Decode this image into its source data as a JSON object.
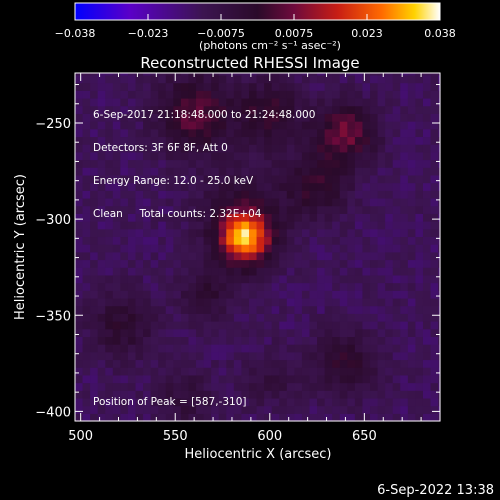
{
  "chart_data": {
    "type": "heatmap",
    "title": "Reconstructed RHESSI Image",
    "xlabel": "Heliocentric X (arcsec)",
    "ylabel": "Heliocentric Y (arcsec)",
    "xlim": [
      497,
      690
    ],
    "ylim": [
      -405,
      -224
    ],
    "x_ticks": [
      500,
      550,
      600,
      650
    ],
    "y_ticks": [
      -250,
      -300,
      -350,
      -400
    ],
    "colorbar": {
      "range": [
        -0.038,
        0.038
      ],
      "ticks": [
        "-0.038",
        "-0.023",
        "-0.0075",
        "0.0075",
        "0.023",
        "0.038"
      ],
      "unit_label": "(photons cm⁻² s⁻¹ asec⁻²)",
      "colormap": [
        "#0000ff",
        "#5a00c8",
        "#3c1450",
        "#2a0a2a",
        "#6e0a3c",
        "#c81e14",
        "#ff6a00",
        "#ffd200",
        "#ffffff"
      ]
    },
    "sources": [
      {
        "x": 587,
        "y": -310,
        "amplitude": 0.038,
        "sigma": 9
      },
      {
        "x": 585,
        "y": -298,
        "amplitude": 0.012,
        "sigma": 16
      },
      {
        "x": 560,
        "y": -245,
        "amplitude": 0.018,
        "sigma": 14
      },
      {
        "x": 600,
        "y": -245,
        "amplitude": 0.014,
        "sigma": 12
      },
      {
        "x": 640,
        "y": -255,
        "amplitude": 0.02,
        "sigma": 11
      },
      {
        "x": 625,
        "y": -282,
        "amplitude": 0.013,
        "sigma": 12
      },
      {
        "x": 522,
        "y": -355,
        "amplitude": 0.011,
        "sigma": 12
      },
      {
        "x": 567,
        "y": -338,
        "amplitude": 0.01,
        "sigma": 10
      },
      {
        "x": 640,
        "y": -375,
        "amplitude": 0.012,
        "sigma": 12
      },
      {
        "x": 555,
        "y": -393,
        "amplitude": 0.008,
        "sigma": 11
      },
      {
        "x": 600,
        "y": -383,
        "amplitude": 0.007,
        "sigma": 10
      }
    ],
    "background_level": -0.0125,
    "overlay_text": [
      "6-Sep-2017 21:18:48.000 to 21:24:48.000",
      "Detectors: 3F 6F 8F, Att 0",
      "Energy Range: 12.0 - 25.0 keV",
      "Clean     Total counts: 2.32E+04"
    ],
    "peak_label": "Position of Peak = [587,-310]"
  },
  "footer_timestamp": "6-Sep-2022 13:38"
}
